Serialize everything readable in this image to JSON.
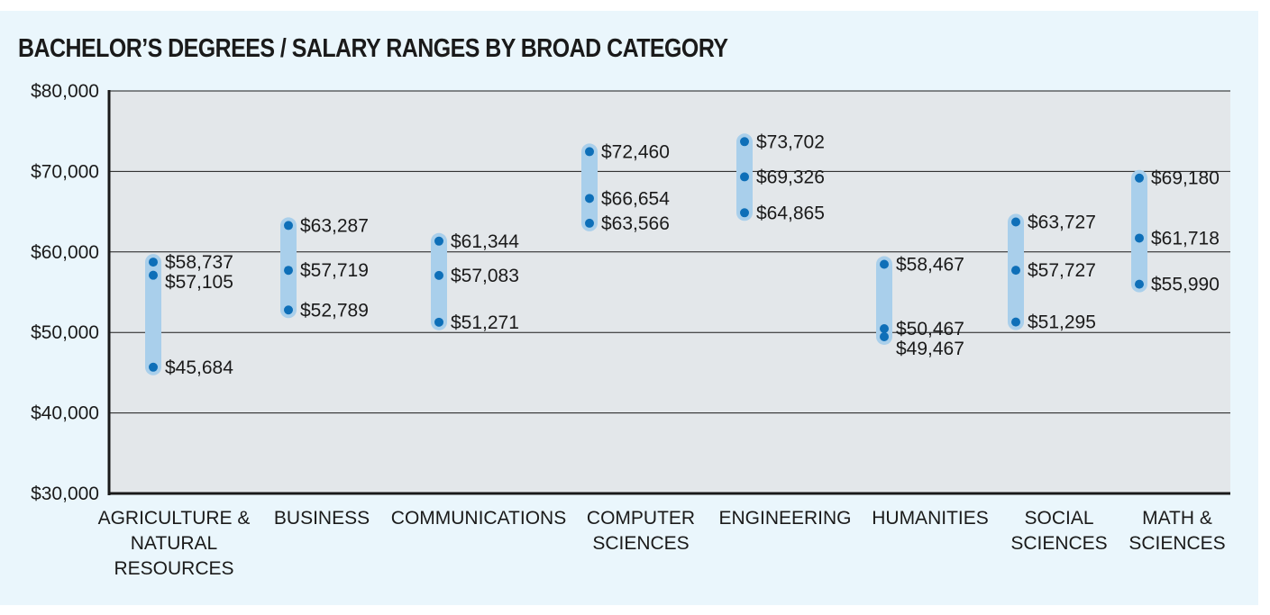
{
  "chart_data": {
    "type": "range",
    "title": "BACHELOR’S DEGREES / SALARY RANGES BY BROAD CATEGORY",
    "y_ticks": [
      "$30,000",
      "$40,000",
      "$50,000",
      "$60,000",
      "$70,000",
      "$80,000"
    ],
    "ylim": [
      30000,
      80000
    ],
    "grid": true,
    "categories": [
      {
        "label": [
          "AGRICULTURE &",
          "NATURAL",
          "RESOURCES"
        ],
        "values": [
          58737,
          57105,
          45684
        ],
        "value_labels": [
          "$58,737",
          "$57,105",
          "$45,684"
        ]
      },
      {
        "label": [
          "BUSINESS"
        ],
        "values": [
          63287,
          57719,
          52789
        ],
        "value_labels": [
          "$63,287",
          "$57,719",
          "$52,789"
        ]
      },
      {
        "label": [
          "COMMUNICATIONS"
        ],
        "values": [
          61344,
          57083,
          51271
        ],
        "value_labels": [
          "$61,344",
          "$57,083",
          "$51,271"
        ]
      },
      {
        "label": [
          "COMPUTER",
          "SCIENCES"
        ],
        "values": [
          72460,
          66654,
          63566
        ],
        "value_labels": [
          "$72,460",
          "$66,654",
          "$63,566"
        ]
      },
      {
        "label": [
          "ENGINEERING"
        ],
        "values": [
          73702,
          69326,
          64865
        ],
        "value_labels": [
          "$73,702",
          "$69,326",
          "$64,865"
        ]
      },
      {
        "label": [
          "HUMANITIES"
        ],
        "values": [
          58467,
          50467,
          49467
        ],
        "value_labels": [
          "$58,467",
          "$50,467",
          "$49,467"
        ]
      },
      {
        "label": [
          "SOCIAL",
          "SCIENCES"
        ],
        "values": [
          63727,
          57727,
          51295
        ],
        "value_labels": [
          "$63,727",
          "$57,727",
          "$51,295"
        ]
      },
      {
        "label": [
          "MATH &",
          "SCIENCES"
        ],
        "values": [
          69180,
          61718,
          55990
        ],
        "value_labels": [
          "$69,180",
          "$61,718",
          "$55,990"
        ]
      }
    ],
    "colors": {
      "plot_bg": "#e3e7ea",
      "range_bar": "#a9cfeb",
      "point": "#0e6fb8",
      "grid": "#1a1a1a",
      "panel_bg": "#eaf6fc"
    }
  }
}
